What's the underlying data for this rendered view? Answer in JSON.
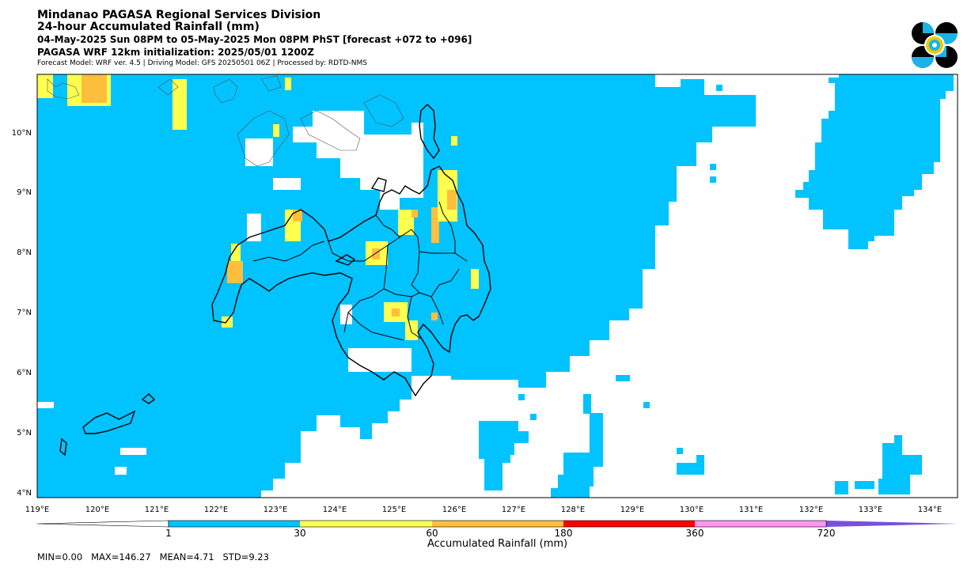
{
  "header": {
    "title": "Mindanao PAGASA Regional Services Division",
    "subtitle": "24-hour Accumulated Rainfall (mm)",
    "period": "04-May-2025 Sun 08PM to 05-May-2025 Mon 08PM PhST [forecast +072 to +096]",
    "model_init": "PAGASA WRF 12km initialization: 2025/05/01 1200Z",
    "model_info": "Forecast Model: WRF ver. 4.5 | Driving Model: GFS 20250501 06Z | Processed by: RDTD-NMS"
  },
  "map": {
    "lon_labels": [
      "119°E",
      "120°E",
      "121°E",
      "122°E",
      "123°E",
      "124°E",
      "125°E",
      "126°E",
      "127°E",
      "128°E",
      "129°E",
      "130°E",
      "131°E",
      "132°E",
      "133°E",
      "134°E"
    ],
    "lat_labels": [
      "10°N",
      "9°N",
      "8°N",
      "7°N",
      "6°N",
      "5°N",
      "4°N"
    ]
  },
  "colorbar": {
    "title": "Accumulated Rainfall (mm)",
    "labels": [
      "1",
      "30",
      "60",
      "180",
      "360",
      "720"
    ],
    "colors": [
      "#00c3ff",
      "#ffff50",
      "#ffbe3c",
      "#ff0000",
      "#ff96f0",
      "#7850dc"
    ]
  },
  "stats": "MIN=0.00   MAX=146.27   MEAN=4.71   STD=9.23"
}
